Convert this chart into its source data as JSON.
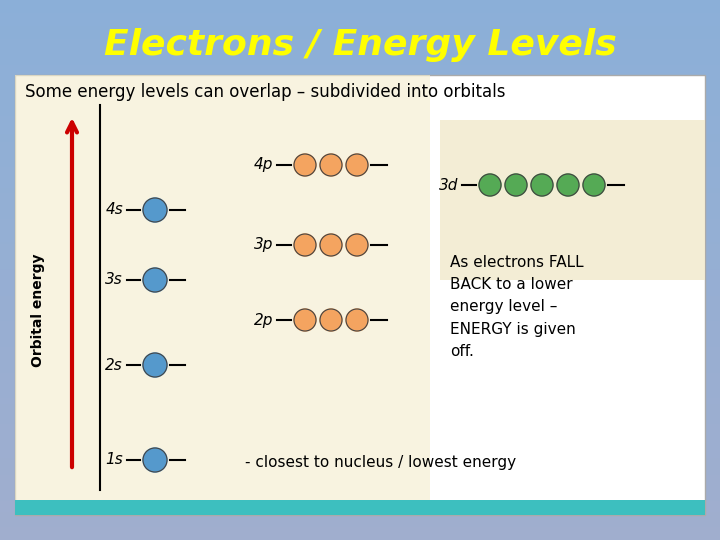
{
  "title": "Electrons / Energy Levels",
  "title_color": "#FFFF00",
  "title_fontsize": 26,
  "subtitle": "Some energy levels can overlap – subdivided into orbitals",
  "subtitle_fontsize": 12,
  "bg_color": "#8BAFD8",
  "content_bg": "#FFFFFF",
  "cream_bg": "#F5EED0",
  "cream_bg2": "#F0E8C8",
  "bottom_bar_color": "#3DBFBF",
  "arrow_color": "#CC0000",
  "axis_label": "Orbital energy",
  "s_orbital_color": "#5599CC",
  "p_orbital_color": "#F4A460",
  "d_orbital_color": "#55AA55",
  "fallback_text": "As electrons FALL\nBACK to a lower\nenergy level –\nENERGY is given\noff.",
  "bottom_text": "- closest to nucleus / lowest energy"
}
